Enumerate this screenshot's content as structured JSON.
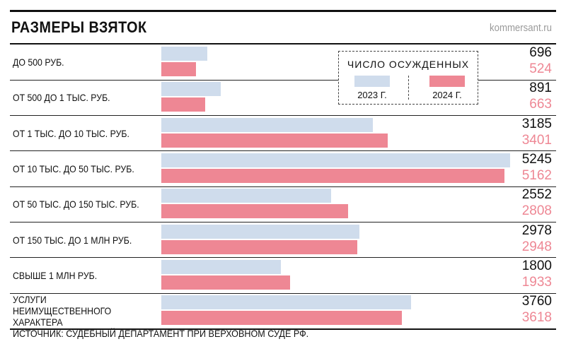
{
  "header": {
    "title": "РАЗМЕРЫ ВЗЯТОК",
    "site": "kommersant.ru"
  },
  "legend": {
    "title": "ЧИСЛО ОСУЖДЕННЫХ",
    "items": [
      {
        "label": "2023 Г.",
        "color": "#cfdcec"
      },
      {
        "label": "2024 Г.",
        "color": "#ee8794"
      }
    ]
  },
  "footnote": "ИСТОЧНИК: СУДЕБНЫЙ ДЕПАРТАМЕНТ ПРИ ВЕРХОВНОМ СУДЕ РФ.",
  "chart_data": {
    "type": "bar",
    "orientation": "horizontal",
    "title": "РАЗМЕРЫ ВЗЯТОК",
    "legend_title": "ЧИСЛО ОСУЖДЕННЫХ",
    "legend_position": "top-right",
    "grid": false,
    "xlim": [
      0,
      5245
    ],
    "categories": [
      "ДО 500 РУБ.",
      "ОТ 500 ДО 1 ТЫС. РУБ.",
      "ОТ 1 ТЫС. ДО 10 ТЫС. РУБ.",
      "ОТ 10 ТЫС. ДО 50 ТЫС. РУБ.",
      "ОТ 50 ТЫС. ДО 150 ТЫС. РУБ.",
      "ОТ 150 ТЫС. ДО 1 МЛН РУБ.",
      "СВЫШЕ 1 МЛН РУБ.",
      "УСЛУГИ НЕИМУЩЕСТВЕННОГО ХАРАКТЕРА"
    ],
    "series": [
      {
        "name": "2023 Г.",
        "color": "#cfdcec",
        "values": [
          696,
          891,
          3185,
          5245,
          2552,
          2978,
          1800,
          3760
        ]
      },
      {
        "name": "2024 Г.",
        "color": "#ee8794",
        "values": [
          524,
          663,
          3401,
          5162,
          2808,
          2948,
          1933,
          3618
        ]
      }
    ]
  }
}
